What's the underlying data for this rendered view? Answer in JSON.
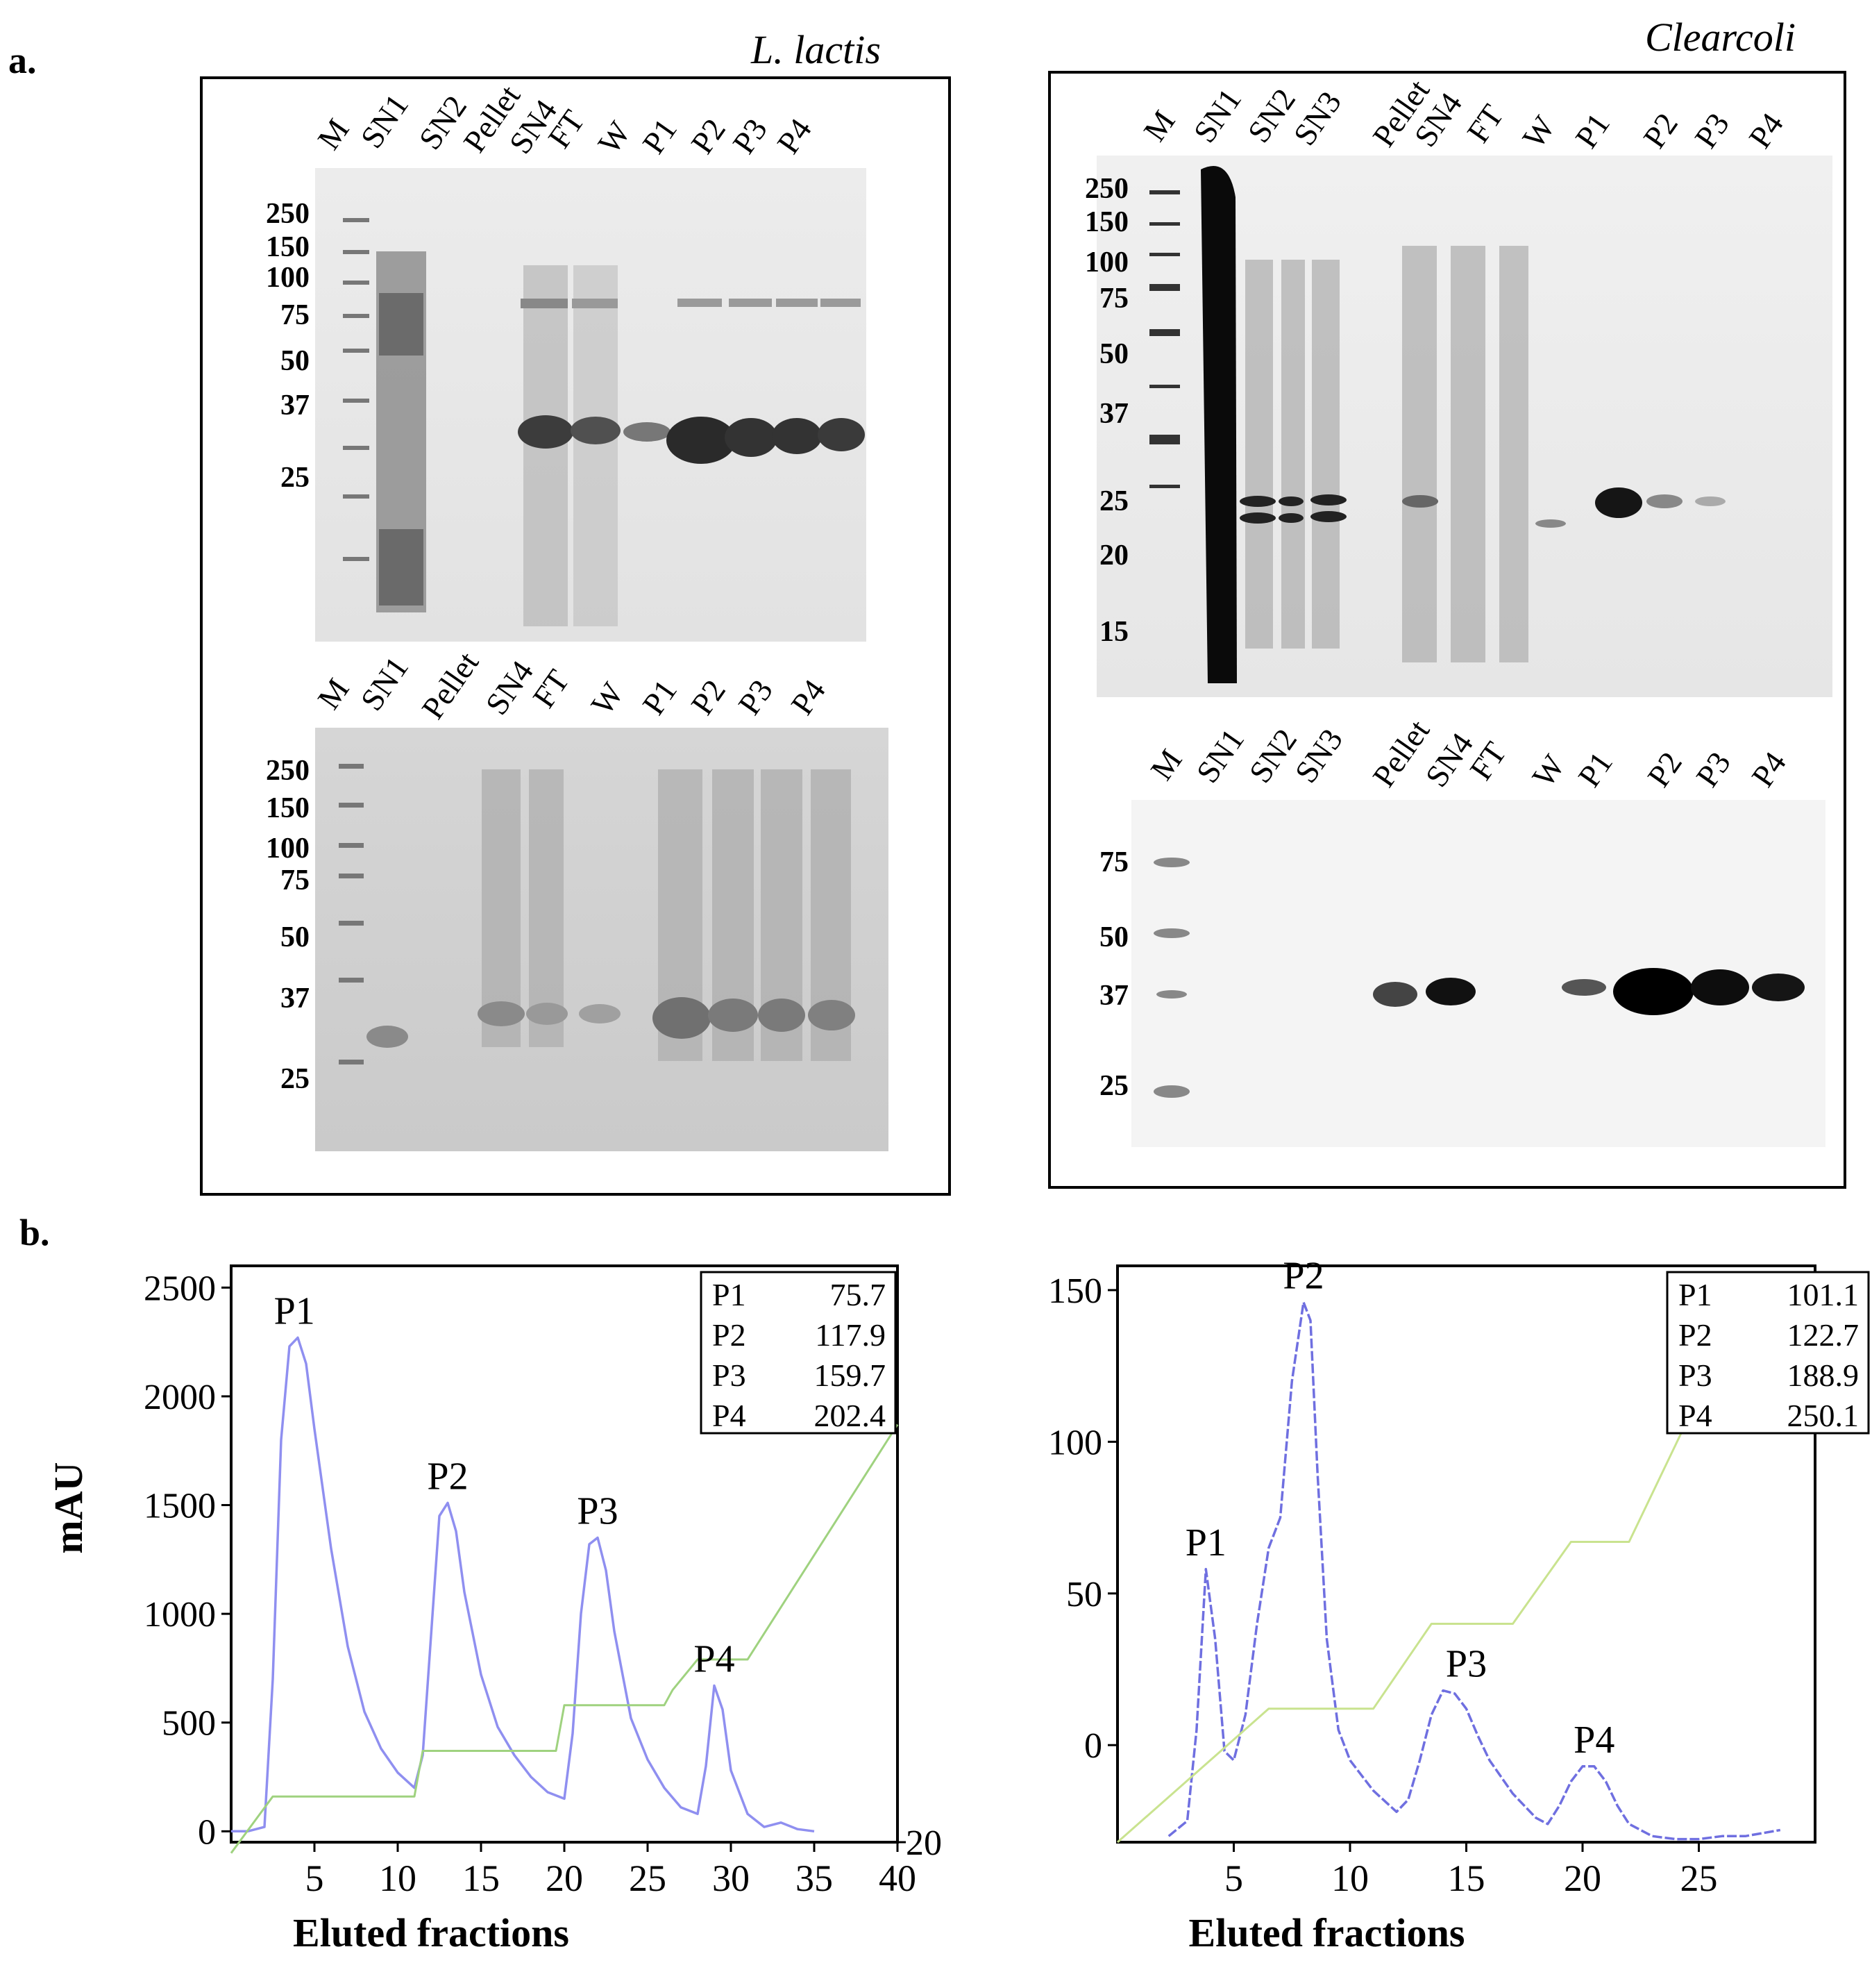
{
  "panel_a": {
    "label": "a.",
    "left": {
      "species": "L. lactis",
      "top_gel": {
        "lanes": [
          "M",
          "SN1",
          "SN2",
          "Pellet",
          "SN4",
          "FT",
          "W",
          "P1",
          "P2",
          "P3",
          "P4"
        ],
        "markers": [
          "250",
          "150",
          "100",
          "75",
          "50",
          "37",
          "25"
        ]
      },
      "bottom_gel": {
        "lanes": [
          "M",
          "SN1",
          "Pellet",
          "SN4",
          "FT",
          "W",
          "P1",
          "P2",
          "P3",
          "P4"
        ],
        "markers": [
          "250",
          "150",
          "100",
          "75",
          "50",
          "37",
          "25"
        ]
      }
    },
    "right": {
      "species": "Clearcoli",
      "top_gel": {
        "lanes": [
          "M",
          "SN1",
          "SN2",
          "SN3",
          "Pellet",
          "SN4",
          "FT",
          "W",
          "P1",
          "P2",
          "P3",
          "P4"
        ],
        "markers": [
          "250",
          "150",
          "100",
          "75",
          "50",
          "37",
          "25",
          "20",
          "15"
        ]
      },
      "bottom_gel": {
        "lanes": [
          "M",
          "SN1",
          "SN2",
          "SN3",
          "Pellet",
          "SN4",
          "FT",
          "W",
          "P1",
          "P2",
          "P3",
          "P4"
        ],
        "markers": [
          "75",
          "50",
          "37",
          "25"
        ]
      }
    }
  },
  "panel_b": {
    "label": "b."
  },
  "chart_data": [
    {
      "type": "line",
      "xlabel": "Eluted fractions",
      "ylabel": "mAU",
      "xlim": [
        0,
        40
      ],
      "ylim": [
        -50,
        2600
      ],
      "xticks": [
        "5",
        "10",
        "15",
        "20",
        "25",
        "30",
        "35",
        "40"
      ],
      "yticks": [
        "0",
        "500",
        "1000",
        "1500",
        "2000",
        "2500"
      ],
      "right_axis_label": "20",
      "peak_labels": [
        "P1",
        "P2",
        "P3",
        "P4"
      ],
      "peak_table": [
        {
          "peak": "P1",
          "value": "75.7"
        },
        {
          "peak": "P2",
          "value": "117.9"
        },
        {
          "peak": "P3",
          "value": "159.7"
        },
        {
          "peak": "P4",
          "value": "202.4"
        }
      ],
      "series": [
        {
          "name": "absorbance",
          "color": "#8f8ff0",
          "x": [
            0,
            1,
            2,
            2.5,
            3,
            3.5,
            4,
            4.5,
            5,
            6,
            7,
            8,
            9,
            10,
            11,
            11.5,
            12,
            12.5,
            13,
            13.5,
            14,
            15,
            16,
            17,
            18,
            19,
            20,
            20.5,
            21,
            21.5,
            22,
            22.5,
            23,
            24,
            25,
            26,
            27,
            28,
            28.5,
            29,
            29.5,
            30,
            31,
            32,
            33,
            34,
            35
          ],
          "y": [
            0,
            0,
            20,
            700,
            1800,
            2230,
            2270,
            2150,
            1850,
            1300,
            850,
            550,
            380,
            270,
            200,
            350,
            900,
            1450,
            1510,
            1380,
            1100,
            720,
            480,
            350,
            250,
            180,
            150,
            450,
            1000,
            1320,
            1350,
            1200,
            920,
            520,
            330,
            200,
            110,
            80,
            300,
            670,
            560,
            280,
            80,
            20,
            40,
            10,
            0
          ]
        },
        {
          "name": "gradient",
          "color": "#9fd27f",
          "x": [
            0,
            2.5,
            10,
            11,
            11.5,
            18.5,
            19.5,
            20,
            26,
            26.5,
            28,
            31,
            40
          ],
          "y": [
            -100,
            160,
            160,
            160,
            370,
            370,
            370,
            580,
            580,
            650,
            790,
            790,
            1870
          ]
        }
      ]
    },
    {
      "type": "line",
      "xlabel": "Eluted fractions",
      "ylabel": "",
      "xlim": [
        0,
        30
      ],
      "ylim": [
        -32,
        158
      ],
      "xticks": [
        "5",
        "10",
        "15",
        "20",
        "25"
      ],
      "yticks": [
        "0",
        "50",
        "100",
        "150"
      ],
      "peak_labels": [
        "P1",
        "P2",
        "P3",
        "P4"
      ],
      "peak_table": [
        {
          "peak": "P1",
          "value": "101.1"
        },
        {
          "peak": "P2",
          "value": "122.7"
        },
        {
          "peak": "P3",
          "value": "188.9"
        },
        {
          "peak": "P4",
          "value": "250.1"
        }
      ],
      "series": [
        {
          "name": "absorbance",
          "color": "#6f6fe0",
          "x": [
            2.2,
            3,
            3.4,
            3.8,
            4.2,
            4.6,
            5,
            5.5,
            6,
            6.5,
            7,
            7.5,
            8,
            8.3,
            8.6,
            9,
            9.5,
            10,
            11,
            12,
            12.5,
            13,
            13.5,
            14,
            14.5,
            15,
            15.5,
            16,
            17,
            18,
            18.5,
            19,
            19.5,
            20,
            20.5,
            21,
            21.5,
            22,
            23,
            24,
            25,
            26,
            27,
            28.5
          ],
          "y": [
            -30,
            -25,
            5,
            58,
            35,
            -2,
            -5,
            10,
            40,
            65,
            75,
            120,
            146,
            140,
            90,
            35,
            5,
            -5,
            -15,
            -22,
            -18,
            -5,
            10,
            18,
            17,
            12,
            3,
            -5,
            -16,
            -24,
            -26,
            -20,
            -12,
            -7,
            -7,
            -12,
            -20,
            -26,
            -30,
            -31,
            -31,
            -30,
            -30,
            -28
          ]
        },
        {
          "name": "gradient",
          "color": "#c9e38f",
          "x": [
            0,
            6.5,
            11,
            13.5,
            17,
            19.5,
            22,
            25.5
          ],
          "y": [
            -32,
            12,
            12,
            40,
            40,
            67,
            67,
            123
          ]
        }
      ]
    }
  ]
}
